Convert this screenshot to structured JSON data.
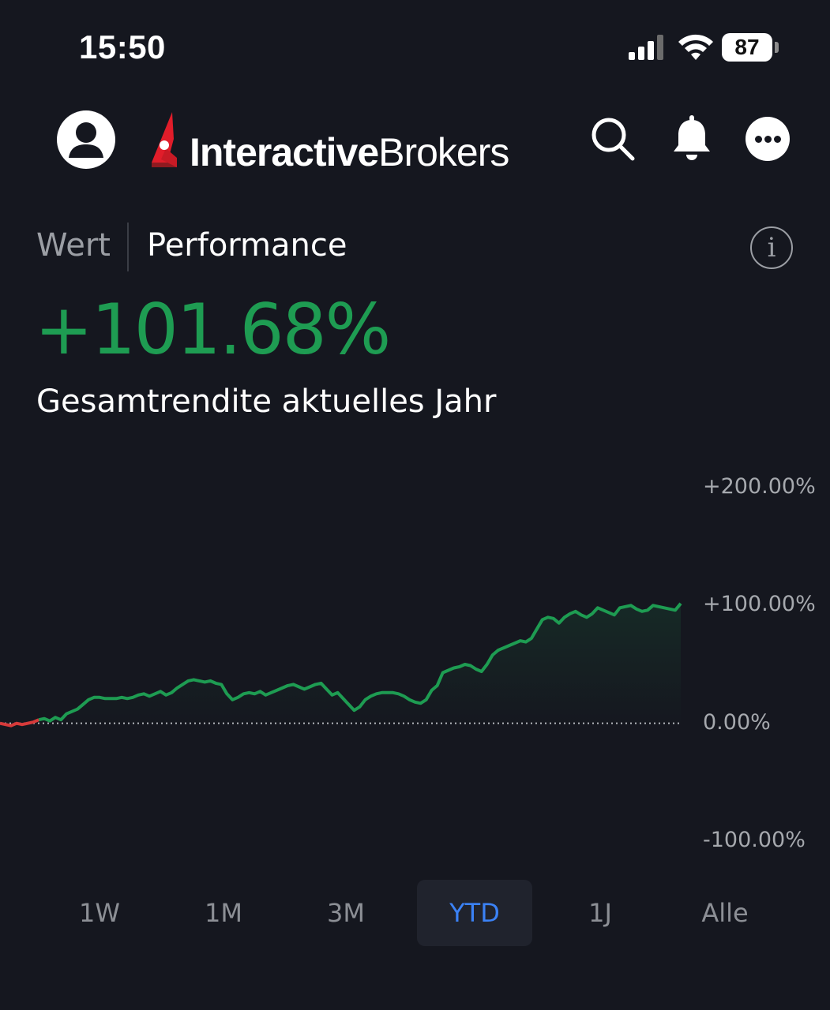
{
  "status_bar": {
    "time": "15:50",
    "battery": "87",
    "icons": [
      "signal-icon",
      "wifi-icon",
      "battery-icon"
    ]
  },
  "header": {
    "brand_bold": "Interactive",
    "brand_regular": "Brokers",
    "brand_color": "#e11d2a",
    "icons": [
      "profile-icon",
      "search-icon",
      "bell-icon",
      "more-icon"
    ]
  },
  "tabs": {
    "value_label": "Wert",
    "performance_label": "Performance",
    "active": "Performance"
  },
  "summary": {
    "value": "+101.68%",
    "label": "Gesamtrendite aktuelles Jahr",
    "value_color": "#1e9c52"
  },
  "chart_data": {
    "type": "line",
    "y_ticks": [
      "+200.00%",
      "+100.00%",
      "0.00%",
      "-100.00%"
    ],
    "ylim": [
      -100,
      200
    ],
    "baseline": 0,
    "positive_color": "#1e9c52",
    "negative_color": "#d63a3a",
    "y": [
      0,
      -1,
      -2,
      0,
      -1,
      0,
      1,
      3,
      4,
      2,
      5,
      3,
      8,
      10,
      12,
      16,
      20,
      22,
      22,
      21,
      21,
      21,
      22,
      21,
      22,
      24,
      25,
      23,
      25,
      27,
      24,
      26,
      30,
      33,
      36,
      37,
      36,
      35,
      36,
      34,
      33,
      25,
      20,
      22,
      25,
      26,
      25,
      27,
      24,
      26,
      28,
      30,
      32,
      33,
      31,
      29,
      31,
      33,
      34,
      29,
      24,
      26,
      21,
      16,
      11,
      14,
      20,
      23,
      25,
      26,
      26,
      26,
      25,
      23,
      20,
      18,
      17,
      20,
      28,
      32,
      43,
      45,
      47,
      48,
      50,
      49,
      46,
      44,
      50,
      58,
      62,
      64,
      66,
      68,
      70,
      69,
      72,
      80,
      88,
      90,
      89,
      85,
      90,
      93,
      95,
      92,
      90,
      93,
      98,
      96,
      94,
      92,
      98,
      99,
      100,
      97,
      95,
      96,
      100,
      99,
      98,
      97,
      96,
      101.68
    ]
  },
  "range_selector": {
    "options": [
      "1W",
      "1M",
      "3M",
      "YTD",
      "1J",
      "Alle"
    ],
    "active": "YTD",
    "active_color": "#3b82f6"
  }
}
